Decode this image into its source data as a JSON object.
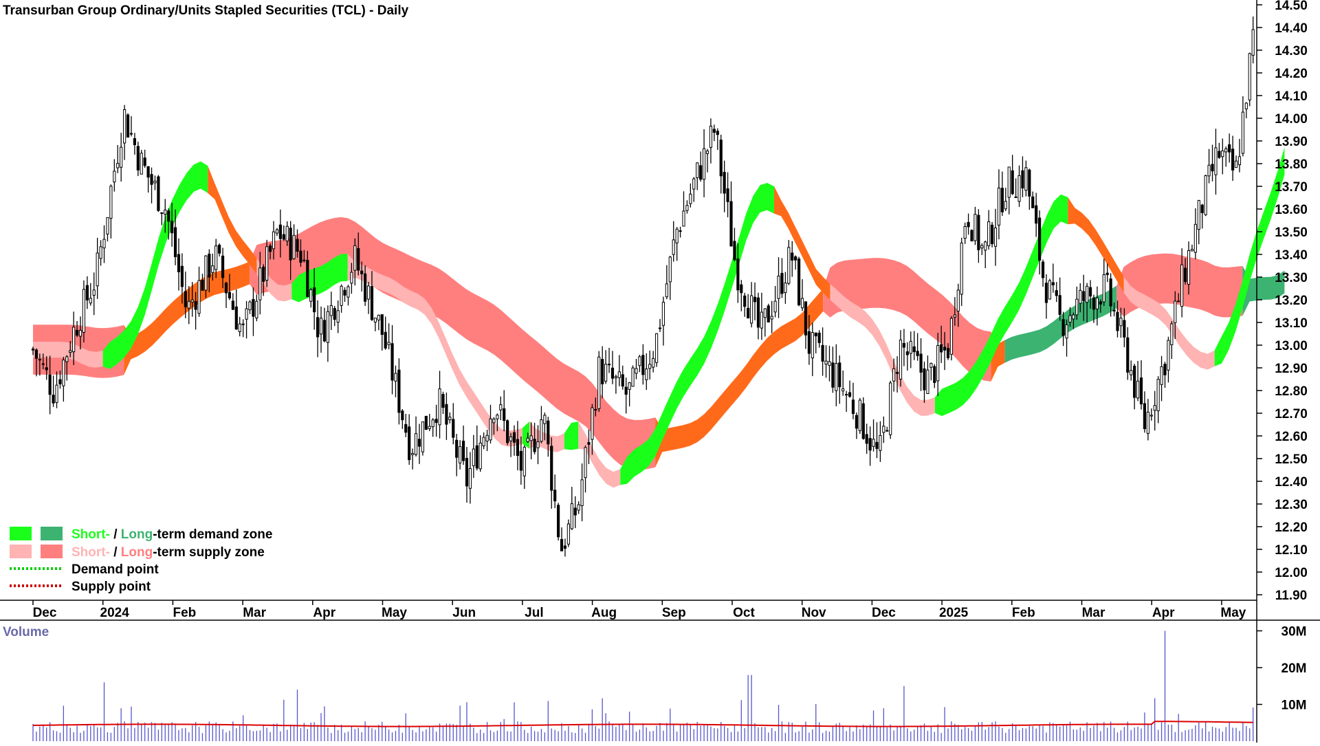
{
  "title": "Transurban Group Ordinary/Units Stapled Securities (TCL) - Daily",
  "legend": {
    "demand_zone": {
      "short": "Short-",
      "sep": " / ",
      "long": "Long",
      "rest": "-term demand zone"
    },
    "supply_zone": {
      "short": "Short-",
      "sep": " / ",
      "long": "Long",
      "rest": "-term supply zone"
    },
    "demand_point": "Demand point",
    "supply_point": "Supply point"
  },
  "volume_label": "Volume",
  "colors": {
    "short_demand": "#1aff1a",
    "long_demand": "#3cb371",
    "short_supply": "#ffb3b3",
    "long_supply": "#ff7f7f",
    "orange_band": "#ff6a1a",
    "demand_point": "#00cc00",
    "supply_point": "#cc0000",
    "candle": "#000000",
    "volume_bar": "#5555cc",
    "volume_ma": "#dd0000",
    "grid": "#000000"
  },
  "chart_data": {
    "type": "candlestick",
    "price_axis": {
      "ticks": [
        "14.50",
        "14.40",
        "14.30",
        "14.20",
        "14.10",
        "14.00",
        "13.90",
        "13.80",
        "13.70",
        "13.60",
        "13.50",
        "13.40",
        "13.30",
        "13.20",
        "13.10",
        "13.00",
        "12.90",
        "12.80",
        "12.70",
        "12.60",
        "12.50",
        "12.40",
        "12.30",
        "12.20",
        "12.10",
        "12.00",
        "11.90"
      ],
      "ylim": [
        11.85,
        14.52
      ]
    },
    "x_axis": {
      "ticks": [
        "Dec",
        "2024",
        "Feb",
        "Mar",
        "Apr",
        "May",
        "Jun",
        "Jul",
        "Aug",
        "Sep",
        "Oct",
        "Nov",
        "Dec",
        "2025",
        "Feb",
        "Mar",
        "Apr",
        "May"
      ],
      "range_months": [
        0,
        17.6
      ]
    },
    "price_path": [
      [
        0.0,
        12.98
      ],
      [
        0.3,
        12.8
      ],
      [
        0.6,
        13.08
      ],
      [
        0.9,
        13.3
      ],
      [
        1.3,
        14.02
      ],
      [
        1.55,
        13.8
      ],
      [
        1.9,
        13.6
      ],
      [
        2.2,
        13.15
      ],
      [
        2.6,
        13.4
      ],
      [
        3.0,
        13.05
      ],
      [
        3.5,
        13.5
      ],
      [
        3.85,
        13.4
      ],
      [
        4.1,
        13.05
      ],
      [
        4.6,
        13.38
      ],
      [
        5.0,
        13.05
      ],
      [
        5.4,
        12.55
      ],
      [
        5.8,
        12.75
      ],
      [
        6.2,
        12.4
      ],
      [
        6.6,
        12.75
      ],
      [
        7.0,
        12.45
      ],
      [
        7.3,
        12.7
      ],
      [
        7.55,
        12.1
      ],
      [
        7.8,
        12.3
      ],
      [
        8.1,
        12.9
      ],
      [
        8.5,
        12.78
      ],
      [
        8.9,
        13.0
      ],
      [
        9.2,
        13.5
      ],
      [
        9.5,
        13.75
      ],
      [
        9.75,
        13.95
      ],
      [
        10.05,
        13.35
      ],
      [
        10.4,
        13.05
      ],
      [
        10.85,
        13.4
      ],
      [
        11.1,
        13.0
      ],
      [
        11.5,
        12.85
      ],
      [
        11.8,
        12.7
      ],
      [
        12.1,
        12.5
      ],
      [
        12.4,
        13.0
      ],
      [
        12.8,
        12.85
      ],
      [
        13.1,
        13.0
      ],
      [
        13.35,
        13.6
      ],
      [
        13.6,
        13.4
      ],
      [
        13.9,
        13.7
      ],
      [
        14.2,
        13.75
      ],
      [
        14.45,
        13.3
      ],
      [
        14.7,
        13.1
      ],
      [
        15.0,
        13.2
      ],
      [
        15.35,
        13.25
      ],
      [
        15.65,
        12.95
      ],
      [
        15.9,
        12.65
      ],
      [
        16.2,
        12.95
      ],
      [
        16.45,
        13.3
      ],
      [
        16.7,
        13.6
      ],
      [
        16.95,
        13.85
      ],
      [
        17.2,
        13.75
      ],
      [
        17.45,
        14.35
      ]
    ],
    "zones": {
      "short_demand": [
        [
          0.0,
          12.58,
          12.65
        ],
        [
          0.5,
          12.8,
          12.92
        ],
        [
          1.0,
          13.22,
          13.38
        ],
        [
          1.4,
          13.45,
          13.58
        ],
        [
          1.8,
          13.55,
          13.62
        ],
        [
          9.3,
          13.0,
          13.12
        ],
        [
          9.7,
          13.38,
          13.5
        ],
        [
          10.0,
          13.52,
          13.62
        ],
        [
          13.3,
          13.08,
          13.18
        ],
        [
          13.8,
          13.35,
          13.45
        ],
        [
          14.2,
          13.48,
          13.55
        ],
        [
          16.5,
          13.18,
          13.22
        ],
        [
          17.0,
          13.45,
          13.55
        ],
        [
          17.5,
          13.72,
          13.85
        ]
      ],
      "long_demand": [
        [
          14.0,
          13.12,
          13.15
        ],
        [
          14.5,
          13.18,
          13.2
        ],
        [
          16.6,
          13.17,
          13.19
        ],
        [
          17.5,
          13.27,
          13.33
        ]
      ],
      "short_supply": [
        [
          2.0,
          13.42,
          13.44
        ],
        [
          2.7,
          13.18,
          13.25
        ],
        [
          3.4,
          13.32,
          13.36
        ],
        [
          4.8,
          13.28,
          13.32
        ],
        [
          5.6,
          12.95,
          13.05
        ],
        [
          6.2,
          12.7,
          12.75
        ],
        [
          10.4,
          13.32,
          13.36
        ],
        [
          11.2,
          13.2,
          13.28
        ],
        [
          11.9,
          12.8,
          12.85
        ],
        [
          15.4,
          13.28,
          13.32
        ],
        [
          15.8,
          13.05,
          13.1
        ]
      ],
      "long_supply": [
        [
          0.0,
          13.25,
          13.47
        ],
        [
          1.0,
          13.35,
          13.4
        ],
        [
          3.5,
          13.35,
          13.38
        ],
        [
          5.0,
          13.25,
          13.35
        ],
        [
          7.5,
          12.88,
          13.0
        ],
        [
          8.3,
          12.92,
          12.98
        ],
        [
          12.5,
          13.05,
          13.08
        ]
      ]
    },
    "volume_axis": {
      "ticks": [
        "30M",
        "20M",
        "10M"
      ],
      "ylim": [
        0,
        32
      ]
    },
    "volume_spikes": [
      [
        16.2,
        30
      ],
      [
        10.25,
        18
      ],
      [
        12.45,
        15
      ],
      [
        1.0,
        16
      ],
      [
        3.8,
        14
      ]
    ]
  }
}
